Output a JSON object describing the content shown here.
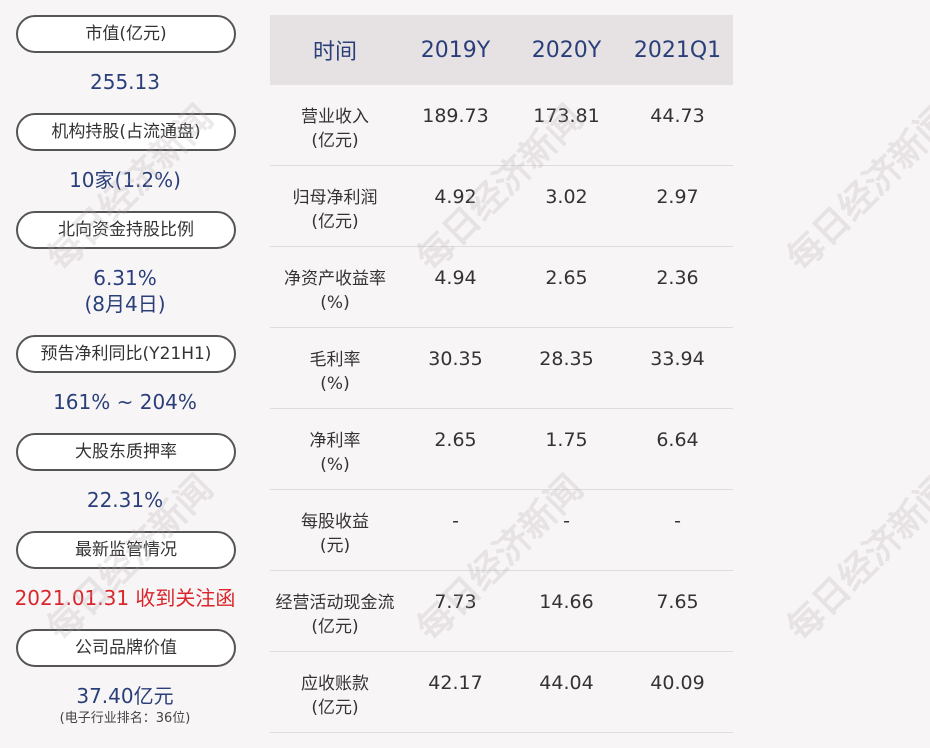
{
  "left_panel": [
    {
      "label": "市值(亿元)",
      "value": "255.13"
    },
    {
      "label": "机构持股(占流通盘)",
      "value": "10家(1.2%)"
    },
    {
      "label": "北向资金持股比例",
      "value": "6.31%",
      "value2": "(8月4日)"
    },
    {
      "label": "预告净利同比(Y21H1)",
      "value": "161% ~ 204%"
    },
    {
      "label": "大股东质押率",
      "value": "22.31%"
    },
    {
      "label": "最新监管情况",
      "value": "2021.01.31 收到关注函"
    },
    {
      "label": "公司品牌价值",
      "value": "37.40亿元",
      "note": "(电子行业排名：36位)"
    }
  ],
  "table": {
    "headers": [
      "时间",
      "2019Y",
      "2020Y",
      "2021Q1"
    ],
    "rows": [
      {
        "label": "营业收入",
        "unit": "(亿元)",
        "values": [
          "189.73",
          "173.81",
          "44.73"
        ]
      },
      {
        "label": "归母净利润",
        "unit": "(亿元)",
        "values": [
          "4.92",
          "3.02",
          "2.97"
        ]
      },
      {
        "label": "净资产收益率",
        "unit": "(%)",
        "values": [
          "4.94",
          "2.65",
          "2.36"
        ]
      },
      {
        "label": "毛利率",
        "unit": "(%)",
        "values": [
          "30.35",
          "28.35",
          "33.94"
        ]
      },
      {
        "label": "净利率",
        "unit": "(%)",
        "values": [
          "2.65",
          "1.75",
          "6.64"
        ]
      },
      {
        "label": "每股收益",
        "unit": "(元)",
        "values": [
          "-",
          "-",
          "-"
        ]
      },
      {
        "label": "经营活动现金流",
        "unit": "(亿元)",
        "values": [
          "7.73",
          "14.66",
          "7.65"
        ]
      },
      {
        "label": "应收账款",
        "unit": "(亿元)",
        "values": [
          "42.17",
          "44.04",
          "40.09"
        ]
      }
    ]
  },
  "watermark": "每日经济新闻"
}
